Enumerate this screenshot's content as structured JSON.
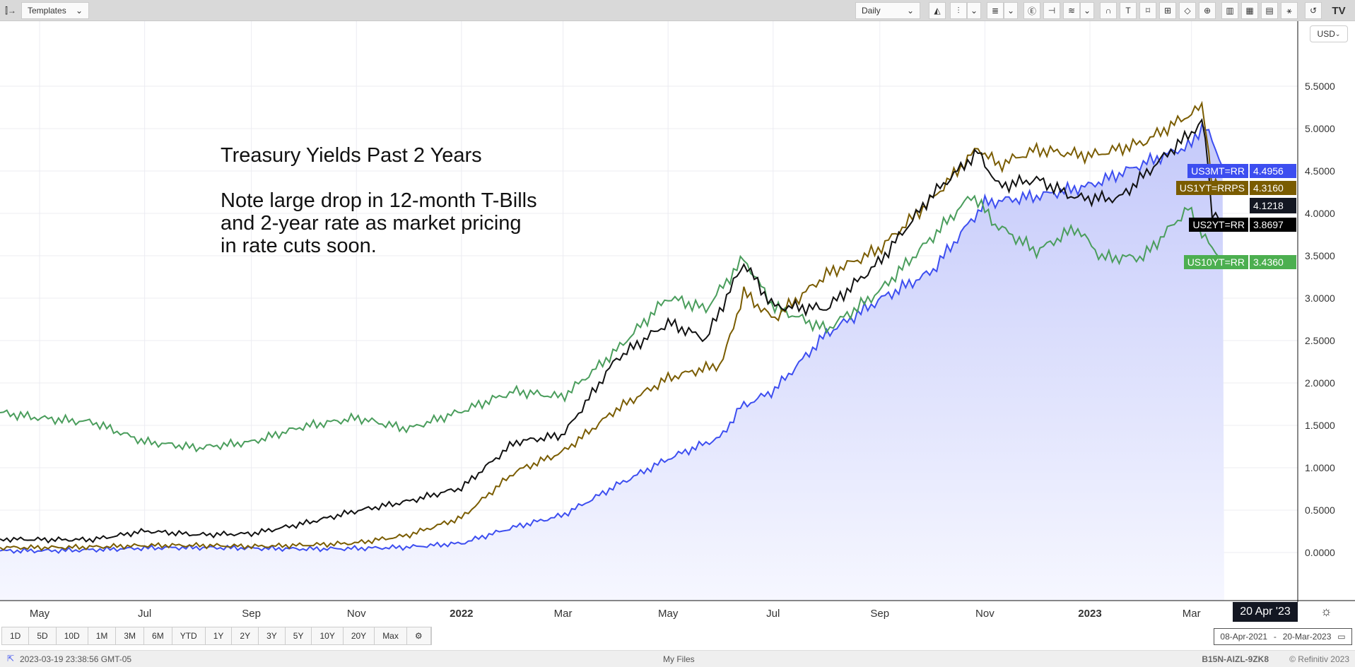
{
  "toolbar": {
    "templates_label": "Templates",
    "interval": "Daily",
    "currency": "USD"
  },
  "annotation": {
    "title": "Treasury Yields Past 2 Years",
    "lines": [
      "Note large drop in 12-month T-Bills",
      "and 2-year rate as market pricing",
      "in rate cuts soon."
    ]
  },
  "crosshair_date": "20 Apr '23",
  "range_buttons": [
    "1D",
    "5D",
    "10D",
    "1M",
    "3M",
    "6M",
    "YTD",
    "1Y",
    "2Y",
    "3Y",
    "5Y",
    "10Y",
    "20Y",
    "Max"
  ],
  "date_range": {
    "from": "08-Apr-2021",
    "sep": "-",
    "to": "20-Mar-2023"
  },
  "status": {
    "timestamp": "2023-03-19 23:38:56 GMT-05",
    "center": "My Files",
    "code": "B15N-AIZL-9ZK8",
    "copyright": "© Refinitiv 2023"
  },
  "chart_data": {
    "type": "line",
    "x_unit": "days since 08-Apr-2021",
    "x_ticks": [
      {
        "day": 23,
        "label": "May"
      },
      {
        "day": 84,
        "label": "Jul"
      },
      {
        "day": 146,
        "label": "Sep"
      },
      {
        "day": 207,
        "label": "Nov"
      },
      {
        "day": 268,
        "label": "2022",
        "bold": true
      },
      {
        "day": 327,
        "label": "Mar"
      },
      {
        "day": 388,
        "label": "May"
      },
      {
        "day": 449,
        "label": "Jul"
      },
      {
        "day": 511,
        "label": "Sep"
      },
      {
        "day": 572,
        "label": "Nov"
      },
      {
        "day": 633,
        "label": "2023",
        "bold": true
      },
      {
        "day": 692,
        "label": "Mar"
      }
    ],
    "y_ticks": [
      "0.0000",
      "0.5000",
      "1.0000",
      "1.5000",
      "2.0000",
      "2.5000",
      "3.0000",
      "3.5000",
      "4.0000",
      "4.5000",
      "5.0000",
      "5.5000"
    ],
    "ylim": [
      -0.57,
      6.3
    ],
    "series": [
      {
        "name": "US10YT=RR",
        "last": "3.4360",
        "color": "#4caf50",
        "line": "#4a9d5c",
        "points": [
          [
            0,
            1.65
          ],
          [
            23,
            1.6
          ],
          [
            54,
            1.55
          ],
          [
            84,
            1.3
          ],
          [
            115,
            1.22
          ],
          [
            146,
            1.3
          ],
          [
            176,
            1.5
          ],
          [
            207,
            1.6
          ],
          [
            237,
            1.45
          ],
          [
            268,
            1.65
          ],
          [
            299,
            1.9
          ],
          [
            327,
            1.85
          ],
          [
            358,
            2.4
          ],
          [
            388,
            3.0
          ],
          [
            410,
            2.85
          ],
          [
            432,
            3.45
          ],
          [
            449,
            2.9
          ],
          [
            480,
            2.65
          ],
          [
            511,
            3.1
          ],
          [
            541,
            3.7
          ],
          [
            565,
            4.2
          ],
          [
            578,
            3.85
          ],
          [
            602,
            3.55
          ],
          [
            625,
            3.85
          ],
          [
            640,
            3.5
          ],
          [
            664,
            3.5
          ],
          [
            690,
            4.05
          ],
          [
            704,
            3.55
          ],
          [
            711,
            3.43
          ]
        ]
      },
      {
        "name": "US2YT=RR",
        "last": "3.8697",
        "color": "#000000",
        "line": "#111111",
        "points": [
          [
            0,
            0.16
          ],
          [
            54,
            0.16
          ],
          [
            84,
            0.25
          ],
          [
            115,
            0.2
          ],
          [
            146,
            0.22
          ],
          [
            176,
            0.35
          ],
          [
            207,
            0.5
          ],
          [
            237,
            0.6
          ],
          [
            268,
            0.75
          ],
          [
            299,
            1.3
          ],
          [
            327,
            1.4
          ],
          [
            358,
            2.3
          ],
          [
            388,
            2.7
          ],
          [
            410,
            2.5
          ],
          [
            432,
            3.4
          ],
          [
            449,
            2.9
          ],
          [
            480,
            2.9
          ],
          [
            511,
            3.45
          ],
          [
            541,
            4.2
          ],
          [
            568,
            4.7
          ],
          [
            580,
            4.3
          ],
          [
            602,
            4.4
          ],
          [
            625,
            4.2
          ],
          [
            650,
            4.2
          ],
          [
            672,
            4.6
          ],
          [
            699,
            5.07
          ],
          [
            704,
            4.0
          ],
          [
            711,
            3.87
          ]
        ]
      },
      {
        "name": "US1YT=RRPS",
        "last": "4.3160",
        "color": "#7a5c00",
        "line": "#7a5c00",
        "points": [
          [
            0,
            0.06
          ],
          [
            84,
            0.08
          ],
          [
            146,
            0.07
          ],
          [
            207,
            0.12
          ],
          [
            237,
            0.2
          ],
          [
            268,
            0.4
          ],
          [
            299,
            0.95
          ],
          [
            327,
            1.2
          ],
          [
            358,
            1.7
          ],
          [
            388,
            2.05
          ],
          [
            419,
            2.2
          ],
          [
            432,
            3.05
          ],
          [
            449,
            2.75
          ],
          [
            480,
            3.3
          ],
          [
            511,
            3.6
          ],
          [
            541,
            4.15
          ],
          [
            568,
            4.75
          ],
          [
            580,
            4.55
          ],
          [
            602,
            4.75
          ],
          [
            633,
            4.7
          ],
          [
            664,
            4.85
          ],
          [
            699,
            5.25
          ],
          [
            704,
            4.3
          ],
          [
            711,
            4.32
          ]
        ]
      },
      {
        "name": "US3MT=RR",
        "last": "4.4956",
        "color": "#3d4ef0",
        "line": "#3d4ef0",
        "fill": true,
        "points": [
          [
            0,
            0.02
          ],
          [
            84,
            0.05
          ],
          [
            176,
            0.05
          ],
          [
            237,
            0.06
          ],
          [
            268,
            0.1
          ],
          [
            299,
            0.3
          ],
          [
            327,
            0.45
          ],
          [
            358,
            0.8
          ],
          [
            388,
            1.1
          ],
          [
            419,
            1.35
          ],
          [
            430,
            1.7
          ],
          [
            449,
            1.9
          ],
          [
            480,
            2.6
          ],
          [
            511,
            3.0
          ],
          [
            541,
            3.3
          ],
          [
            572,
            4.1
          ],
          [
            602,
            4.2
          ],
          [
            633,
            4.35
          ],
          [
            664,
            4.6
          ],
          [
            692,
            4.8
          ],
          [
            699,
            5.05
          ],
          [
            711,
            4.5
          ]
        ]
      }
    ],
    "extra_axis_value": "4.1218"
  }
}
